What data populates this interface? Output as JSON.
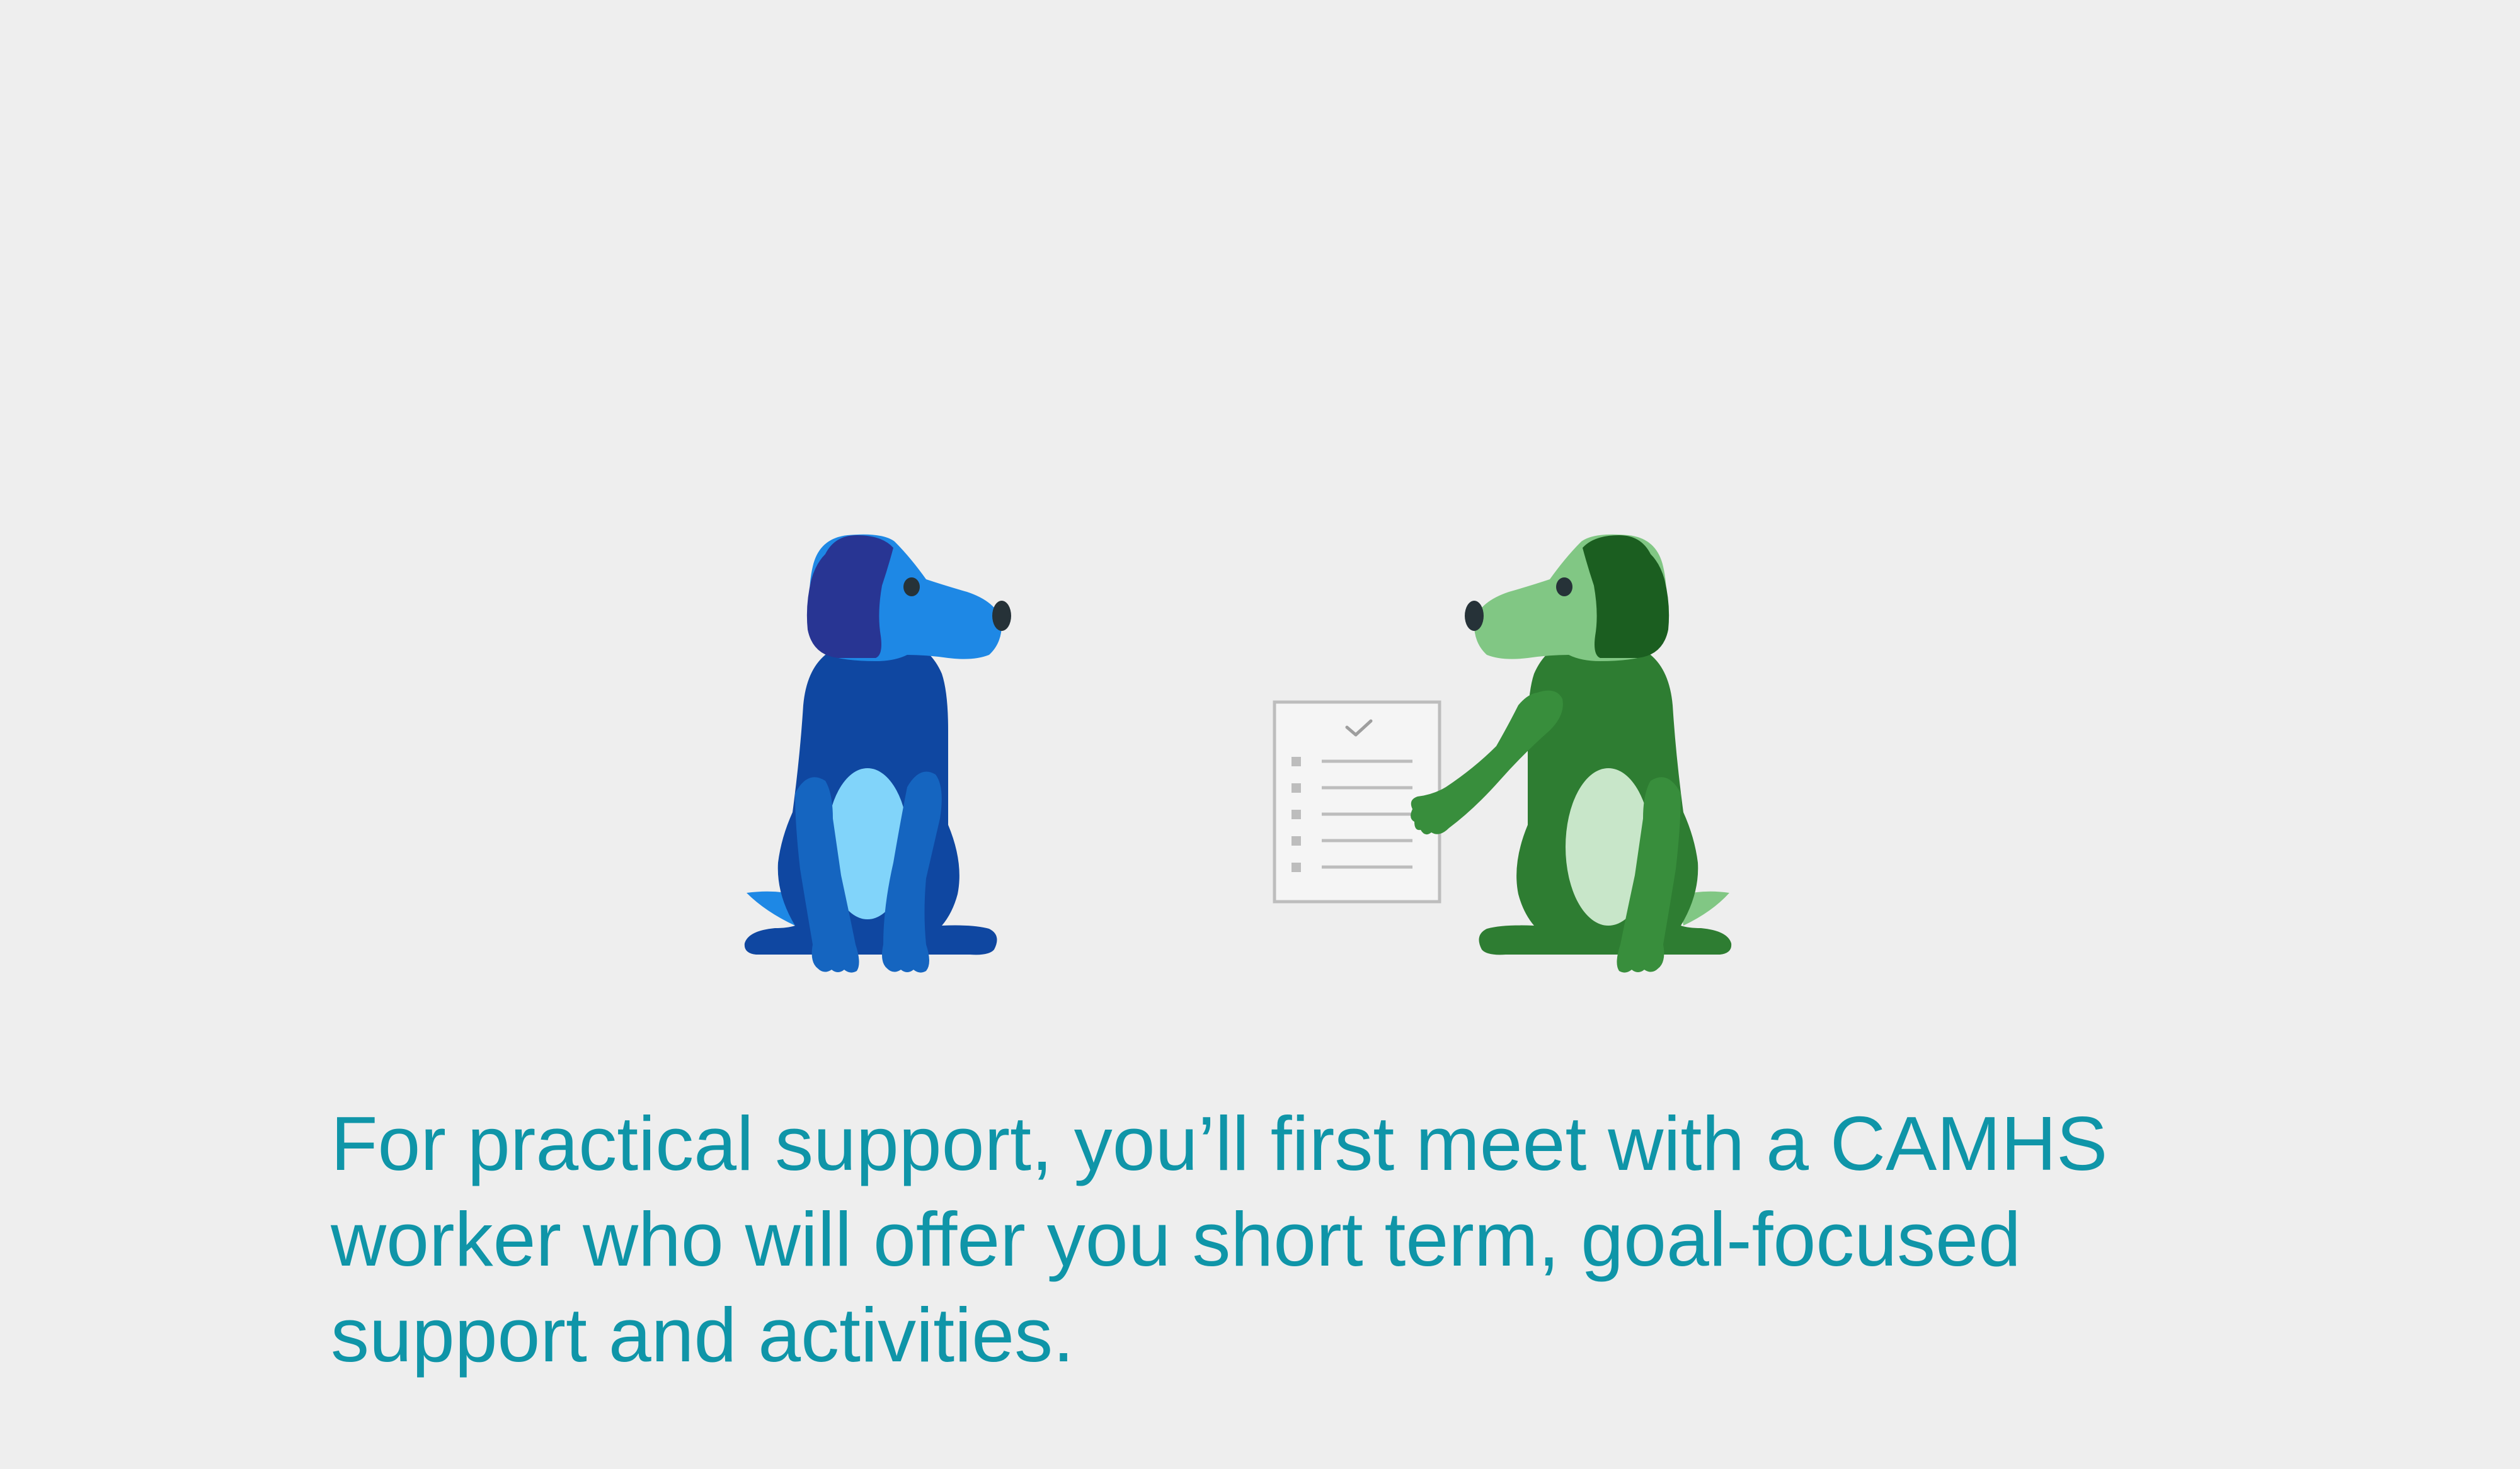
{
  "caption": {
    "text": "For practical support, you’ll first meet with a CAMHS worker who will offer you short term, goal-focused support and activities."
  },
  "colors": {
    "background": "#eeeeee",
    "caption_text": "#0f95a8",
    "blue_dog_body": "#0f47a1",
    "blue_dog_head": "#1e88e5",
    "blue_dog_ear": "#283593",
    "blue_dog_legs": "#1565c0",
    "blue_dog_belly": "#81d4fa",
    "green_dog_body": "#2e7d32",
    "green_dog_head": "#81c784",
    "green_dog_ear": "#1b5e20",
    "green_dog_arm": "#388e3c",
    "green_dog_belly": "#c8e6c9",
    "nose_eye": "#263238",
    "document_fill": "#f5f5f5",
    "document_stroke": "#bdbdbd"
  },
  "icons": [
    "blue-dog-illustration",
    "green-dog-illustration",
    "checklist-document-icon",
    "checkmark-icon"
  ]
}
